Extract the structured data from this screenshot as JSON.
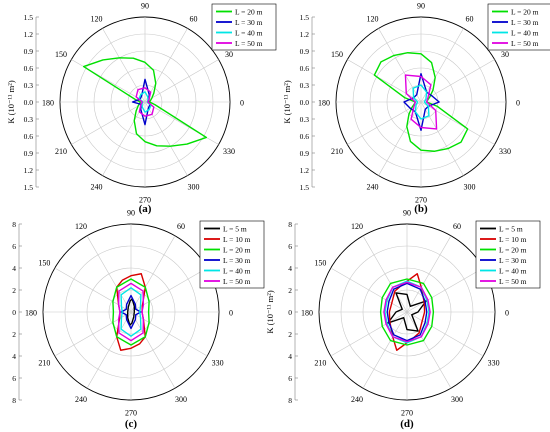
{
  "panel_labels": [
    "(a)",
    "(b)",
    "(c)",
    "(d)"
  ],
  "colors": {
    "L5": "#000000",
    "L10": "#d80000",
    "L20": "#00e000",
    "L30": "#0000cc",
    "L40": "#00e6e6",
    "L50": "#e000e0",
    "grid": "#c8c8c8",
    "axis": "#808080"
  },
  "chart_data": [
    {
      "type": "polar-line",
      "panel": "(a)",
      "ylabel": "K (10⁻¹¹ m²)",
      "rmax": 1.5,
      "radial_ticks": [
        "0.0",
        "0.3",
        "0.6",
        "0.9",
        "1.2",
        "1.5"
      ],
      "angle_ticks": [
        0,
        30,
        60,
        90,
        120,
        150,
        180,
        210,
        240,
        270,
        300,
        330
      ],
      "legend": "top-right",
      "series": [
        {
          "name": "L = 20 m",
          "key": "L20",
          "angles": [
            0,
            15,
            30,
            45,
            60,
            75,
            90,
            105,
            120,
            135,
            150,
            165,
            180,
            195,
            210,
            225,
            240,
            255,
            270,
            285,
            300,
            315,
            330,
            345
          ],
          "r": [
            0.08,
            0.1,
            0.14,
            0.22,
            0.38,
            0.58,
            0.7,
            0.8,
            0.9,
            1.05,
            1.25,
            0.18,
            0.08,
            0.1,
            0.14,
            0.22,
            0.38,
            0.58,
            0.7,
            0.8,
            0.9,
            1.05,
            1.25,
            0.18
          ]
        },
        {
          "name": "L = 30 m",
          "key": "L30",
          "angles": [
            0,
            30,
            60,
            90,
            120,
            150,
            180,
            210,
            240,
            270,
            300,
            330
          ],
          "r": [
            0.06,
            0.08,
            0.15,
            0.4,
            0.12,
            0.1,
            0.22,
            0.08,
            0.15,
            0.4,
            0.12,
            0.1
          ]
        },
        {
          "name": "L = 40 m",
          "key": "L40",
          "angles": [
            0,
            30,
            60,
            90,
            120,
            150,
            180,
            210,
            240,
            270,
            300,
            330
          ],
          "r": [
            0.04,
            0.06,
            0.1,
            0.18,
            0.15,
            0.12,
            0.04,
            0.06,
            0.1,
            0.18,
            0.15,
            0.12
          ]
        },
        {
          "name": "L = 50 m",
          "key": "L50",
          "angles": [
            0,
            30,
            60,
            90,
            120,
            150,
            180,
            210,
            240,
            270,
            300,
            330
          ],
          "r": [
            0.05,
            0.08,
            0.2,
            0.25,
            0.25,
            0.18,
            0.05,
            0.08,
            0.2,
            0.25,
            0.25,
            0.18
          ]
        }
      ]
    },
    {
      "type": "polar-line",
      "panel": "(b)",
      "ylabel": "K (10⁻¹¹ m²)",
      "rmax": 1.5,
      "radial_ticks": [
        "0.0",
        "0.3",
        "0.6",
        "0.9",
        "1.2",
        "1.5"
      ],
      "angle_ticks": [
        0,
        30,
        60,
        90,
        120,
        150,
        180,
        210,
        240,
        270,
        300,
        330
      ],
      "legend": "top-right",
      "series": [
        {
          "name": "L = 20 m",
          "key": "L20",
          "angles": [
            0,
            15,
            30,
            45,
            60,
            75,
            90,
            105,
            120,
            135,
            150,
            165,
            180,
            195,
            210,
            225,
            240,
            255,
            270,
            285,
            300,
            315,
            330,
            345
          ],
          "r": [
            0.1,
            0.12,
            0.18,
            0.3,
            0.5,
            0.72,
            0.85,
            0.9,
            0.95,
            1.0,
            0.95,
            0.3,
            0.1,
            0.12,
            0.18,
            0.3,
            0.5,
            0.72,
            0.85,
            0.9,
            0.95,
            1.0,
            0.95,
            0.3
          ]
        },
        {
          "name": "L = 30 m",
          "key": "L30",
          "angles": [
            0,
            30,
            60,
            90,
            120,
            150,
            180,
            210,
            240,
            270,
            300,
            330
          ],
          "r": [
            0.32,
            0.22,
            0.2,
            0.5,
            0.15,
            0.15,
            0.3,
            0.22,
            0.2,
            0.5,
            0.15,
            0.15
          ]
        },
        {
          "name": "L = 40 m",
          "key": "L40",
          "angles": [
            0,
            30,
            60,
            90,
            120,
            150,
            180,
            210,
            240,
            270,
            300,
            330
          ],
          "r": [
            0.06,
            0.1,
            0.2,
            0.3,
            0.28,
            0.15,
            0.06,
            0.1,
            0.2,
            0.3,
            0.28,
            0.15
          ]
        },
        {
          "name": "L = 50 m",
          "key": "L50",
          "angles": [
            0,
            30,
            60,
            90,
            120,
            150,
            180,
            210,
            240,
            270,
            300,
            330
          ],
          "r": [
            0.1,
            0.14,
            0.35,
            0.45,
            0.55,
            0.3,
            0.1,
            0.14,
            0.35,
            0.45,
            0.55,
            0.3
          ]
        }
      ]
    },
    {
      "type": "polar-line",
      "panel": "(c)",
      "ylabel": "K (10⁻¹¹ m²)",
      "rmax": 8,
      "radial_ticks": [
        "0",
        "2",
        "4",
        "6",
        "8"
      ],
      "angle_ticks": [
        0,
        30,
        60,
        90,
        120,
        150,
        180,
        210,
        240,
        270,
        300,
        330
      ],
      "legend": "top-right",
      "series": [
        {
          "name": "L = 5 m",
          "key": "L5",
          "angles": [
            0,
            60,
            85,
            95,
            120,
            180,
            240,
            265,
            275,
            300
          ],
          "r": [
            0.3,
            0.6,
            1.2,
            1.0,
            0.5,
            0.3,
            0.6,
            1.2,
            1.0,
            0.5
          ]
        },
        {
          "name": "L = 10 m",
          "key": "L10",
          "angles": [
            0,
            30,
            60,
            75,
            90,
            105,
            120,
            150,
            180,
            210,
            240,
            255,
            270,
            285,
            300,
            330
          ],
          "r": [
            1.0,
            1.2,
            2.6,
            3.6,
            3.3,
            3.0,
            2.6,
            1.3,
            1.0,
            1.2,
            2.6,
            3.6,
            3.3,
            3.0,
            2.6,
            1.3
          ]
        },
        {
          "name": "L = 20 m",
          "key": "L20",
          "angles": [
            0,
            30,
            60,
            90,
            120,
            150,
            180,
            210,
            240,
            270,
            300,
            330
          ],
          "r": [
            1.6,
            1.9,
            2.6,
            3.0,
            2.6,
            1.9,
            1.6,
            1.9,
            2.6,
            3.0,
            2.6,
            1.9
          ]
        },
        {
          "name": "L = 30 m",
          "key": "L30",
          "angles": [
            0,
            30,
            60,
            90,
            120,
            150,
            180,
            210,
            240,
            270,
            300,
            330
          ],
          "r": [
            0.9,
            0.5,
            0.8,
            1.5,
            0.8,
            0.5,
            0.9,
            0.5,
            0.8,
            1.5,
            0.8,
            0.5
          ]
        },
        {
          "name": "L = 40 m",
          "key": "L40",
          "angles": [
            0,
            30,
            60,
            90,
            120,
            150,
            180,
            210,
            240,
            270,
            300,
            330
          ],
          "r": [
            0.8,
            1.0,
            1.8,
            2.2,
            1.8,
            1.0,
            0.8,
            1.0,
            1.8,
            2.2,
            1.8,
            1.0
          ]
        },
        {
          "name": "L = 50 m",
          "key": "L50",
          "angles": [
            0,
            30,
            60,
            90,
            120,
            150,
            180,
            210,
            240,
            270,
            300,
            330
          ],
          "r": [
            1.0,
            1.3,
            2.2,
            2.6,
            2.2,
            1.3,
            1.0,
            1.3,
            2.2,
            2.6,
            2.2,
            1.3
          ]
        }
      ]
    },
    {
      "type": "polar-line",
      "panel": "(d)",
      "ylabel": "K (10⁻¹¹ m²)",
      "rmax": 8,
      "radial_ticks": [
        "0",
        "2",
        "4",
        "6",
        "8"
      ],
      "angle_ticks": [
        0,
        30,
        60,
        90,
        120,
        150,
        180,
        210,
        240,
        270,
        300,
        330
      ],
      "legend": "top-right",
      "series": [
        {
          "name": "L = 5 m",
          "key": "L5",
          "angles": [
            0,
            30,
            60,
            90,
            120,
            150,
            180,
            210,
            240,
            270,
            300,
            330
          ],
          "r": [
            1.0,
            2.0,
            0.6,
            1.6,
            2.0,
            0.5,
            1.0,
            2.0,
            0.6,
            1.6,
            2.0,
            0.5
          ]
        },
        {
          "name": "L = 10 m",
          "key": "L10",
          "angles": [
            0,
            30,
            60,
            75,
            90,
            105,
            120,
            150,
            180,
            210,
            240,
            255,
            270,
            285,
            300,
            330
          ],
          "r": [
            1.6,
            1.8,
            2.6,
            3.6,
            2.8,
            2.4,
            2.2,
            1.6,
            1.6,
            1.8,
            2.6,
            3.6,
            2.8,
            2.4,
            2.2,
            1.6
          ]
        },
        {
          "name": "L = 20 m",
          "key": "L20",
          "angles": [
            0,
            30,
            60,
            90,
            120,
            150,
            180,
            210,
            240,
            270,
            300,
            330
          ],
          "r": [
            2.4,
            2.6,
            3.0,
            3.0,
            3.0,
            2.6,
            2.4,
            2.6,
            3.0,
            3.0,
            3.0,
            2.6
          ]
        },
        {
          "name": "L = 30 m",
          "key": "L30",
          "angles": [
            0,
            30,
            60,
            90,
            120,
            150,
            180,
            210,
            240,
            270,
            300,
            330
          ],
          "r": [
            1.8,
            1.9,
            2.4,
            2.6,
            2.4,
            1.9,
            1.8,
            1.9,
            2.4,
            2.6,
            2.4,
            1.9
          ]
        },
        {
          "name": "L = 40 m",
          "key": "L40",
          "angles": [
            0,
            30,
            60,
            90,
            120,
            150,
            180,
            210,
            240,
            270,
            300,
            330
          ],
          "r": [
            2.0,
            2.1,
            2.6,
            2.8,
            2.6,
            2.1,
            2.0,
            2.1,
            2.6,
            2.8,
            2.6,
            2.1
          ]
        },
        {
          "name": "L = 50 m",
          "key": "L50",
          "angles": [
            0,
            30,
            60,
            90,
            120,
            150,
            180,
            210,
            240,
            270,
            300,
            330
          ],
          "r": [
            2.1,
            2.2,
            2.6,
            2.7,
            2.6,
            2.2,
            2.1,
            2.2,
            2.6,
            2.7,
            2.6,
            2.2
          ]
        }
      ]
    }
  ]
}
